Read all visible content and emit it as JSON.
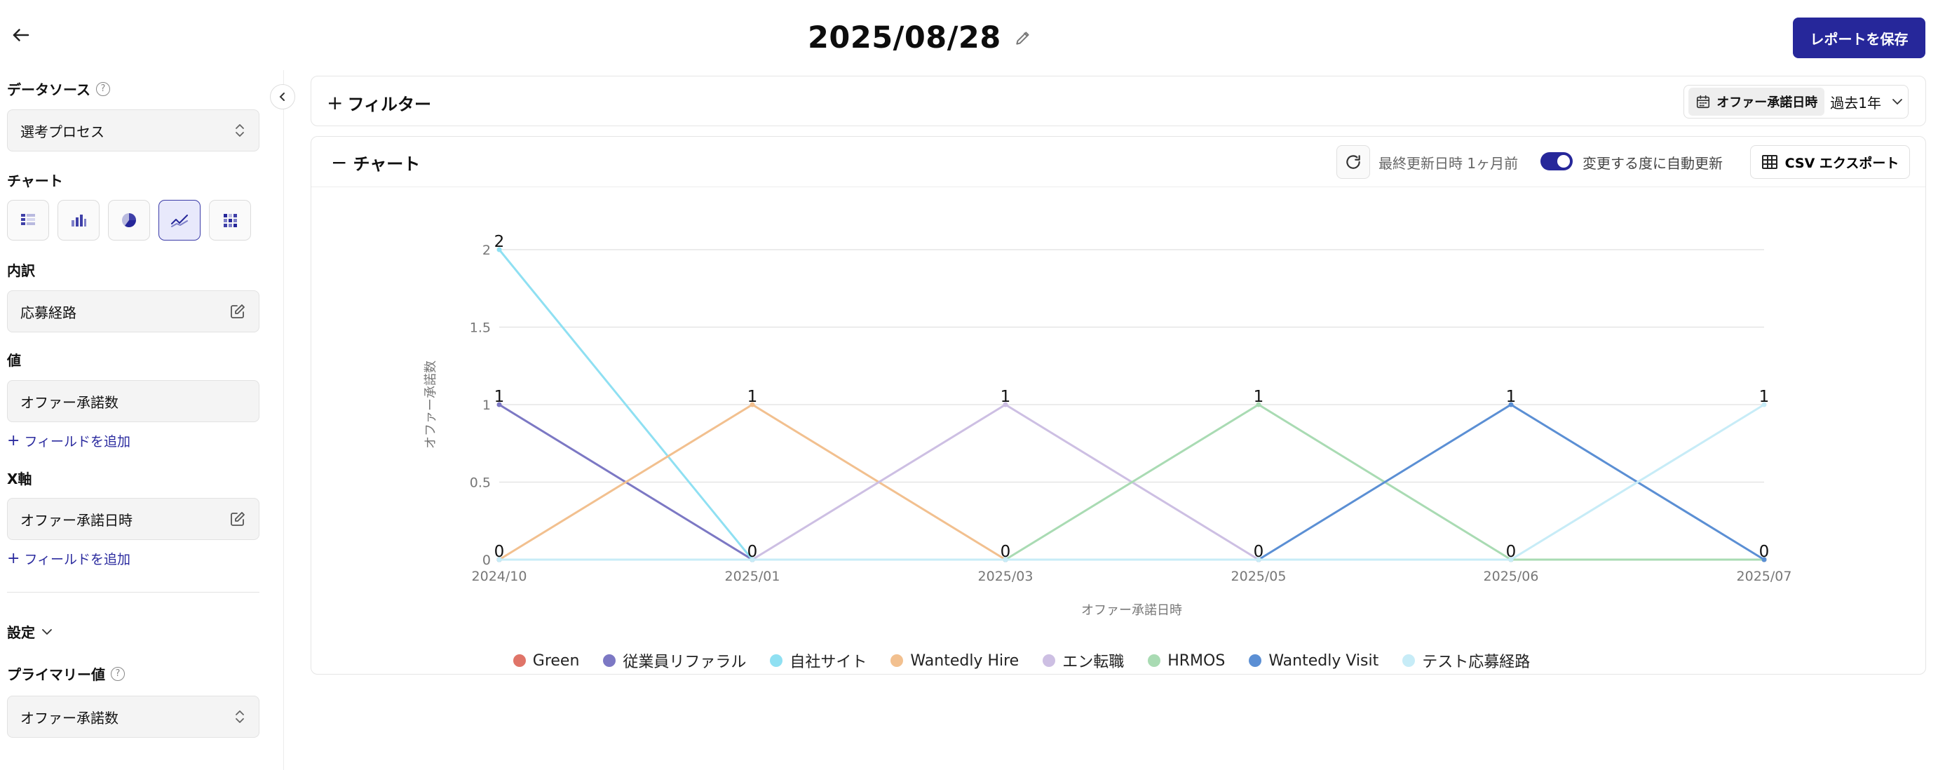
{
  "header": {
    "title": "2025/08/28",
    "save_label": "レポートを保存"
  },
  "sidebar": {
    "datasource_label": "データソース",
    "datasource_value": "選考プロセス",
    "chart_label": "チャート",
    "chart_types": [
      "table-chart-icon",
      "bar-chart-icon",
      "pie-chart-icon",
      "line-chart-icon",
      "heatmap-chart-icon"
    ],
    "breakdown_label": "内訳",
    "breakdown_value": "応募経路",
    "value_label": "値",
    "value_value": "オファー承諾数",
    "add_field_1": "フィールドを追加",
    "xaxis_label": "X軸",
    "xaxis_value": "オファー承諾日時",
    "add_field_2": "フィールドを追加",
    "settings_label": "設定",
    "primary_label": "プライマリー値",
    "primary_value": "オファー承諾数"
  },
  "filter": {
    "label": "フィルター",
    "date_field": "オファー承諾日時",
    "date_range": "過去1年"
  },
  "chart_panel": {
    "label": "チャート",
    "last_updated": "最終更新日時 1ヶ月前",
    "auto_update": "変更する度に自動更新",
    "csv_export": "CSV エクスポート"
  },
  "chart_data": {
    "type": "line",
    "categories": [
      "2024/10",
      "2025/01",
      "2025/03",
      "2025/05",
      "2025/06",
      "2025/07"
    ],
    "xlabel": "オファー承諾日時",
    "ylabel": "オファー承諾数",
    "ylim": [
      0,
      2
    ],
    "yticks": [
      "0",
      "0.5",
      "1",
      "1.5",
      "2"
    ],
    "grid": true,
    "legend_position": "bottom",
    "series": [
      {
        "name": "Green",
        "color": "#e07468",
        "values": [
          0,
          0,
          0,
          0,
          0,
          0
        ]
      },
      {
        "name": "従業員リファラル",
        "color": "#7c78c4",
        "values": [
          1,
          0,
          0,
          0,
          0,
          0
        ]
      },
      {
        "name": "自社サイト",
        "color": "#8fe0f2",
        "values": [
          2,
          0,
          0,
          0,
          0,
          0
        ]
      },
      {
        "name": "Wantedly Hire",
        "color": "#f2c08f",
        "values": [
          0,
          1,
          0,
          0,
          0,
          0
        ]
      },
      {
        "name": "エン転職",
        "color": "#cdbfe3",
        "values": [
          0,
          0,
          1,
          0,
          0,
          0
        ]
      },
      {
        "name": "HRMOS",
        "color": "#a9dbb3",
        "values": [
          0,
          0,
          0,
          1,
          0,
          0
        ]
      },
      {
        "name": "Wantedly Visit",
        "color": "#5b8fd4",
        "values": [
          0,
          0,
          0,
          0,
          1,
          0
        ]
      },
      {
        "name": "テスト応募経路",
        "color": "#c7ecf7",
        "values": [
          0,
          0,
          0,
          0,
          0,
          1
        ]
      }
    ],
    "data_labels": [
      "2",
      "1",
      "1",
      "1",
      "1",
      "1",
      "1",
      "0",
      "0",
      "0",
      "0",
      "0",
      "0"
    ]
  }
}
